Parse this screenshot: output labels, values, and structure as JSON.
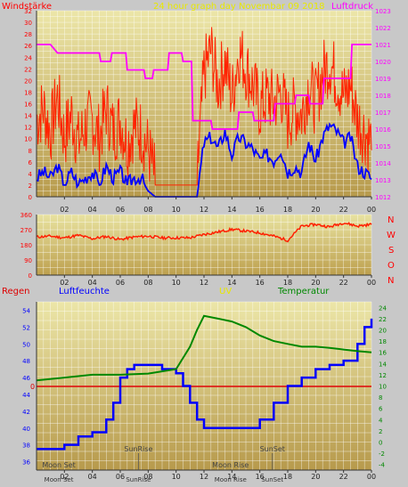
{
  "top": {
    "title_left": "Windstärke",
    "title_center": "24 hour graph day  Novembar 09 2018",
    "title_right": "Luftdruck",
    "left_ticks": [
      "0",
      "2",
      "4",
      "6",
      "8",
      "10",
      "12",
      "14",
      "16",
      "18",
      "20",
      "22",
      "24",
      "26",
      "28",
      "30",
      "32"
    ],
    "right_ticks": [
      "1012",
      "1013",
      "1014",
      "1015",
      "1016",
      "1017",
      "1018",
      "1019",
      "1020",
      "1021",
      "1022",
      "1023"
    ],
    "x_ticks": [
      "02",
      "04",
      "06",
      "08",
      "10",
      "12",
      "14",
      "16",
      "18",
      "20",
      "22",
      "00"
    ]
  },
  "mid": {
    "y_ticks": [
      "0",
      "90",
      "180",
      "270",
      "360"
    ],
    "x_ticks": [
      "02",
      "04",
      "06",
      "08",
      "10",
      "12",
      "14",
      "16",
      "18",
      "20",
      "22",
      "00"
    ],
    "compass": [
      "N",
      "W",
      "S",
      "O",
      "N"
    ]
  },
  "bottom": {
    "label_regen": "Regen",
    "label_feuchte": "Luftfeuchte",
    "label_uv": "UV",
    "label_temp": "Temperatur",
    "rain_zero": "0",
    "left_ticks": [
      "36",
      "38",
      "40",
      "42",
      "44",
      "46",
      "48",
      "50",
      "52",
      "54"
    ],
    "right_ticks": [
      "-4",
      "-2",
      "0",
      "2",
      "4",
      "6",
      "8",
      "10",
      "12",
      "14",
      "16",
      "18",
      "20",
      "22",
      "24"
    ],
    "x_ticks": [
      "02",
      "04",
      "06",
      "08",
      "10",
      "12",
      "14",
      "16",
      "18",
      "20",
      "22",
      "00"
    ],
    "events": [
      {
        "label": "Moon Set",
        "hour": 1.6,
        "row": "low"
      },
      {
        "label": "SunRise",
        "hour": 7.3,
        "row": "high"
      },
      {
        "label": "Moon Rise",
        "hour": 13.9,
        "row": "low"
      },
      {
        "label": "SunSet",
        "hour": 16.9,
        "row": "high"
      }
    ],
    "bottom_labels": [
      {
        "label": "Moon Set",
        "hour": 1.6
      },
      {
        "label": "SunRise",
        "hour": 7.3
      },
      {
        "label": "Moon Rise",
        "hour": 13.9
      },
      {
        "label": "SunSet",
        "hour": 16.9
      }
    ]
  },
  "colors": {
    "wind_gust": "#ff2200",
    "wind_avg": "#0000ff",
    "pressure": "#ff00ff",
    "direction": "#ff2000",
    "humidity": "#0000ff",
    "temperature": "#008800",
    "rain": "#dd0000",
    "title_left": "#ff0000",
    "title_center": "#e8e800",
    "title_right": "#ff00ff",
    "uv_label": "#e8e800",
    "temp_label": "#008800",
    "compass": "#ff0000"
  },
  "chart_data": [
    {
      "type": "line",
      "title": "24 hour graph day  Novembar 09 2018",
      "x_unit": "hour",
      "ylim_left": [
        0,
        32
      ],
      "ylim_right": [
        1012,
        1023
      ],
      "series": [
        {
          "name": "Windstärke",
          "axis": "left",
          "x": [
            0,
            0.5,
            1,
            1.5,
            2,
            2.5,
            3,
            3.5,
            4,
            4.5,
            5,
            5.5,
            6,
            6.5,
            7,
            7.5,
            8,
            8.5,
            9,
            9.5,
            10,
            10.5,
            11,
            11.5,
            12,
            12.5,
            13,
            13.5,
            14,
            14.5,
            15,
            15.5,
            16,
            16.5,
            17,
            17.5,
            18,
            18.5,
            19,
            19.5,
            20,
            20.5,
            21,
            21.5,
            22,
            22.5,
            23,
            23.5,
            24
          ],
          "y": [
            12,
            14,
            10,
            16,
            9,
            13,
            8,
            11,
            12,
            9,
            14,
            10,
            12,
            8,
            11,
            10,
            7,
            2,
            2,
            2,
            2,
            2,
            2,
            2,
            20,
            24,
            18,
            22,
            16,
            24,
            21,
            18,
            14,
            16,
            15,
            17,
            12,
            14,
            13,
            18,
            15,
            20,
            22,
            19,
            16,
            18,
            12,
            10,
            8
          ]
        },
        {
          "name": "",
          "axis": "left",
          "x": [
            0,
            0.5,
            1,
            1.5,
            2,
            2.5,
            3,
            3.5,
            4,
            4.5,
            5,
            5.5,
            6,
            6.5,
            7,
            7.5,
            8,
            8.5,
            9,
            9.5,
            10,
            10.5,
            11,
            11.5,
            12,
            12.5,
            13,
            13.5,
            14,
            14.5,
            15,
            15.5,
            16,
            16.5,
            17,
            17.5,
            18,
            18.5,
            19,
            19.5,
            20,
            20.5,
            21,
            21.5,
            22,
            22.5,
            23,
            23.5,
            24
          ],
          "y": [
            3,
            4,
            3,
            5,
            2,
            4,
            2,
            3,
            4,
            2,
            5,
            3,
            4,
            2,
            3,
            3,
            1,
            0,
            0,
            0,
            0,
            0,
            0,
            0,
            9,
            10,
            8,
            11,
            7,
            10,
            9,
            8,
            6,
            7,
            6,
            8,
            4,
            5,
            4,
            9,
            6,
            10,
            12,
            11,
            9,
            10,
            5,
            4,
            3
          ]
        },
        {
          "name": "Luftdruck",
          "axis": "right",
          "x": [
            0,
            1,
            1.5,
            4.5,
            4.6,
            5.3,
            5.4,
            6.4,
            6.5,
            7.7,
            7.8,
            8.3,
            8.4,
            9.4,
            9.5,
            10.4,
            10.5,
            11.1,
            11.2,
            12.5,
            12.6,
            14.4,
            14.5,
            15.5,
            15.6,
            17,
            17.1,
            18.5,
            18.6,
            19.5,
            19.6,
            20.5,
            20.6,
            22.5,
            22.6,
            24
          ],
          "y": [
            1021,
            1021,
            1020.5,
            1020.5,
            1020,
            1020,
            1020.5,
            1020.5,
            1019.5,
            1019.5,
            1019,
            1019,
            1019.5,
            1019.5,
            1020.5,
            1020.5,
            1020,
            1020,
            1016.5,
            1016.5,
            1016,
            1016,
            1017,
            1017,
            1016.5,
            1016.5,
            1017.5,
            1017.5,
            1018,
            1018,
            1017.5,
            1017.5,
            1019,
            1019,
            1021,
            1021
          ]
        }
      ]
    },
    {
      "type": "line",
      "ylim": [
        0,
        360
      ],
      "series": [
        {
          "name": "",
          "x": [
            0,
            1,
            2,
            3,
            4,
            5,
            6,
            7,
            8,
            9,
            10,
            11,
            12,
            13,
            14,
            15,
            16,
            17,
            18,
            19,
            20,
            21,
            22,
            23,
            24
          ],
          "y": [
            225,
            230,
            220,
            235,
            215,
            228,
            210,
            225,
            230,
            220,
            220,
            220,
            240,
            255,
            270,
            260,
            250,
            230,
            205,
            290,
            300,
            285,
            310,
            290,
            300
          ]
        }
      ]
    },
    {
      "type": "line",
      "ylim_left": [
        36,
        54
      ],
      "ylim_right": [
        -4,
        24
      ],
      "series": [
        {
          "name": "Luftfeuchte",
          "axis": "left",
          "x": [
            0,
            1.5,
            2,
            3,
            4,
            5,
            5.5,
            6,
            6.5,
            7,
            8,
            9,
            10,
            10.5,
            11,
            11.5,
            12,
            13,
            14,
            15,
            16,
            17,
            18,
            19,
            20,
            21,
            22,
            23,
            23.5,
            24
          ],
          "y": [
            37.5,
            37.5,
            38,
            39,
            39.5,
            41,
            43,
            46,
            47,
            47.5,
            47.5,
            47,
            46.5,
            45,
            43,
            41,
            40,
            40,
            40,
            40,
            41,
            43,
            45,
            46,
            47,
            47.5,
            48,
            50,
            52,
            53
          ]
        },
        {
          "name": "Temperatur",
          "axis": "right",
          "x": [
            0,
            2,
            4,
            6,
            8,
            10,
            11,
            11.5,
            12,
            13,
            14,
            15,
            16,
            17,
            18,
            19,
            20,
            21,
            22,
            23,
            24
          ],
          "y": [
            11,
            11.5,
            12,
            12,
            12.2,
            13,
            17,
            20,
            22.5,
            22,
            21.5,
            20.5,
            19,
            18,
            17.5,
            17,
            17,
            16.8,
            16.5,
            16.2,
            16
          ]
        },
        {
          "name": "Regen",
          "axis": "rain",
          "x": [
            0,
            24
          ],
          "y": [
            0,
            0
          ]
        }
      ]
    }
  ]
}
